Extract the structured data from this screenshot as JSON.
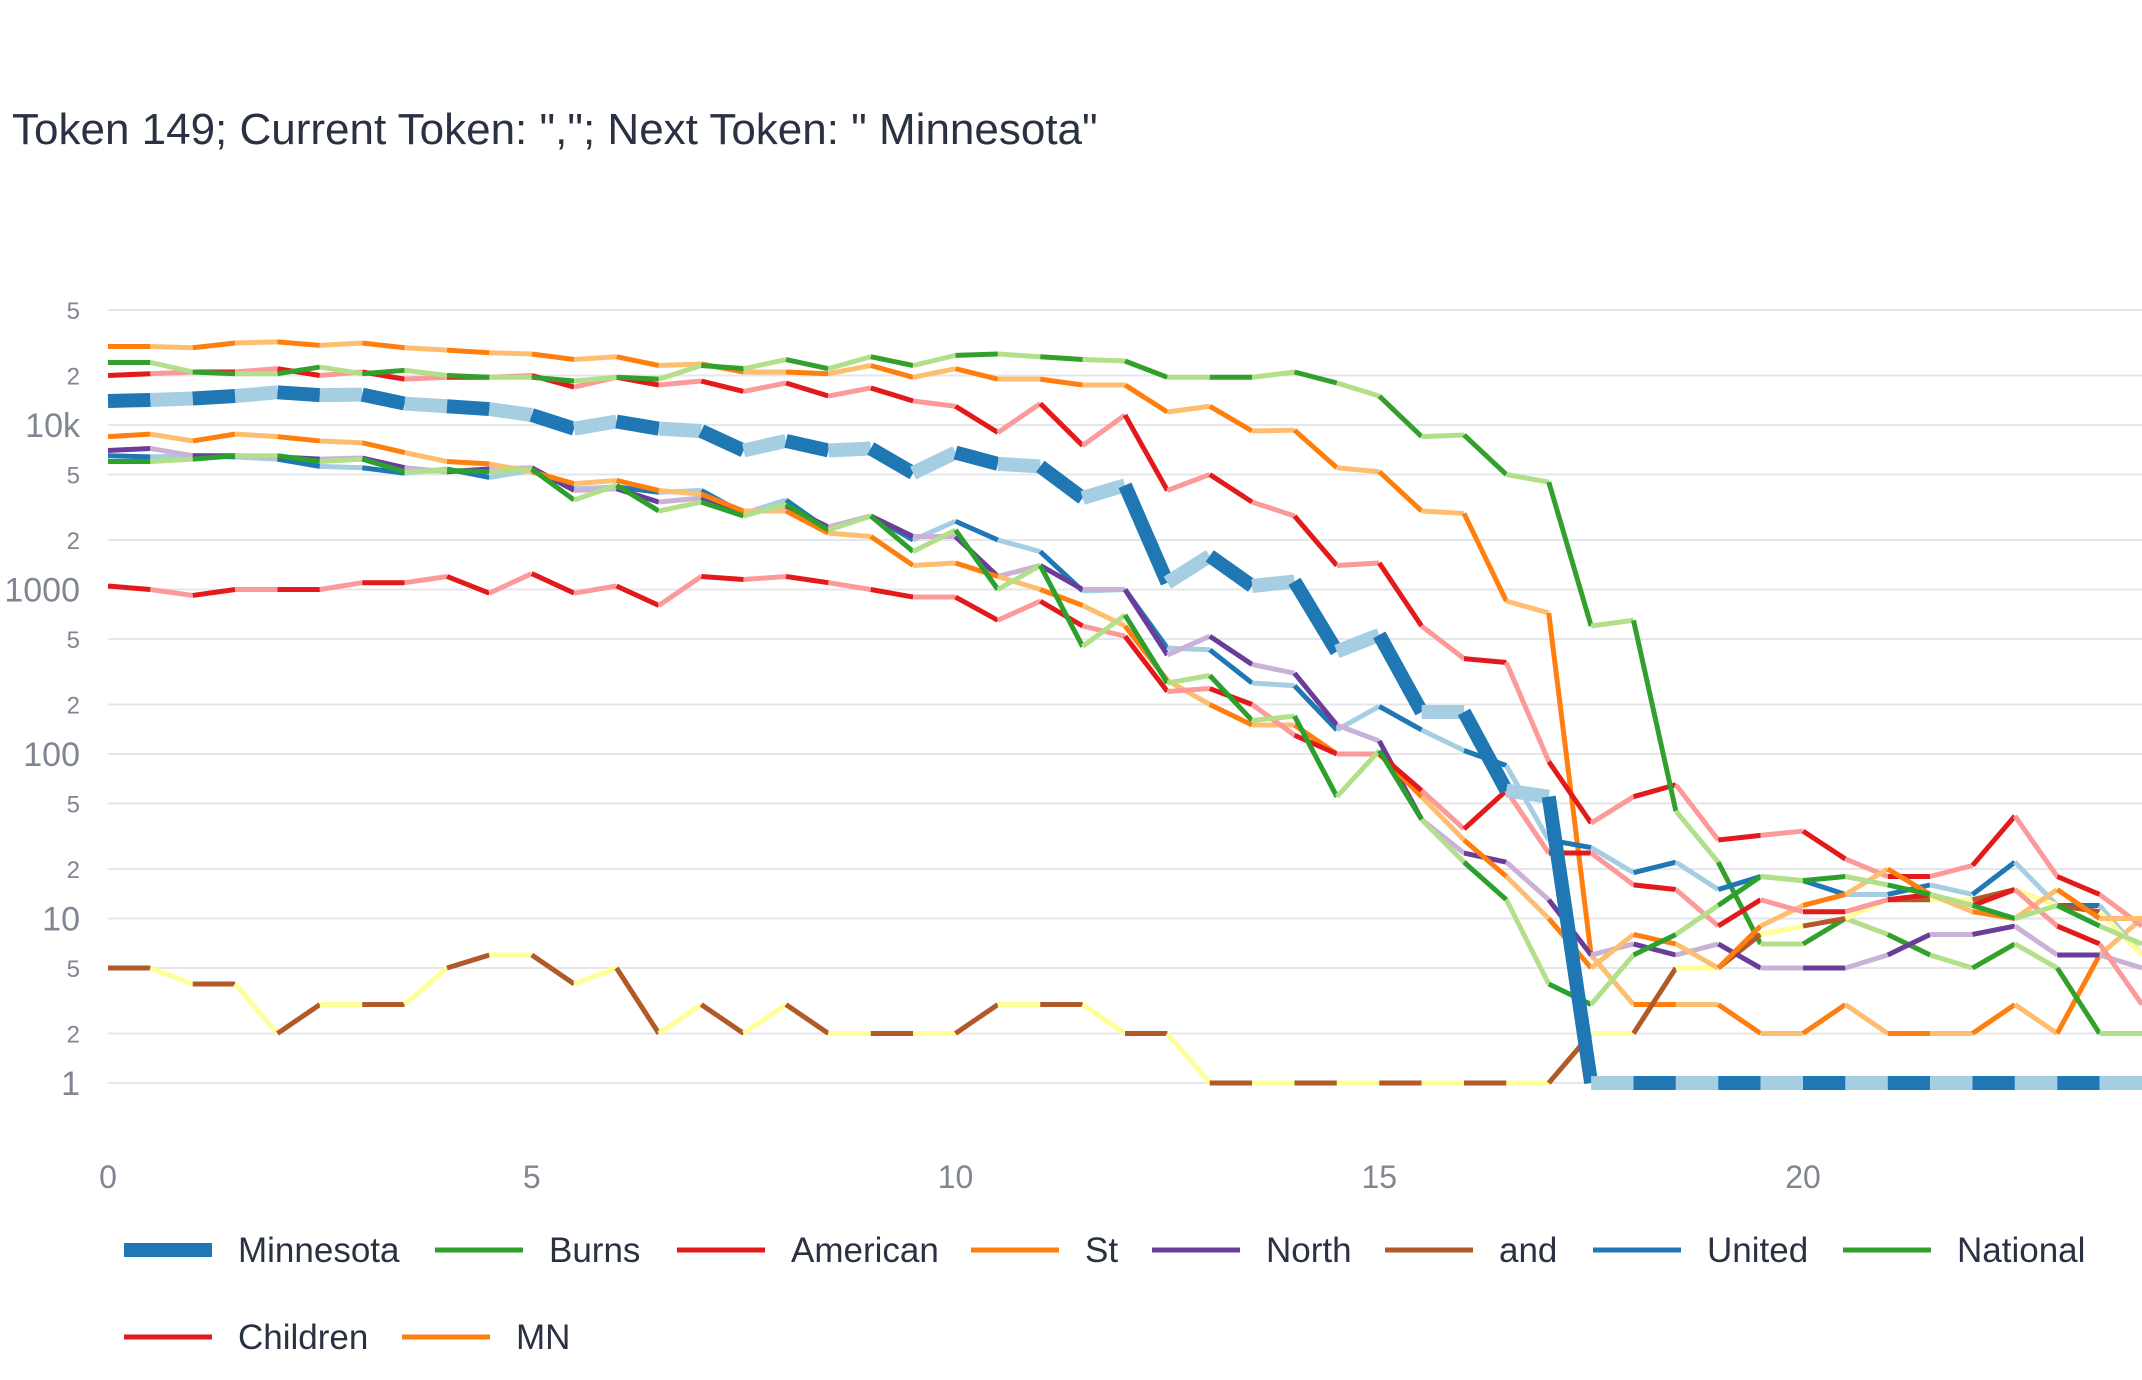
{
  "chart_data": {
    "type": "line",
    "title": "Token 149; Current Token: \",\"; Next Token: \" Minnesota\"",
    "xlabel": "",
    "ylabel": "",
    "y_scale": "log",
    "ylim": [
      0.55,
      6500000
    ],
    "xlim": [
      0,
      24
    ],
    "grid": true,
    "legend_position": "bottom",
    "x_ticks": [
      "0",
      "5",
      "10",
      "15",
      "20"
    ],
    "y_major_ticks": [
      "1",
      "10",
      "100",
      "1000",
      "10k"
    ],
    "y_minor_ticks": [
      "2",
      "5"
    ],
    "x": [
      0,
      0.5,
      1,
      1.5,
      2,
      2.5,
      3,
      3.5,
      4,
      4.5,
      5,
      5.5,
      6,
      6.5,
      7,
      7.5,
      8,
      8.5,
      9,
      9.5,
      10,
      10.5,
      11,
      11.5,
      12,
      12.5,
      13,
      13.5,
      14,
      14.5,
      15,
      15.5,
      16,
      16.5,
      17,
      17.5,
      18,
      18.5,
      19,
      19.5,
      20,
      20.5,
      21,
      21.5,
      22,
      22.5,
      23,
      23.5,
      24
    ],
    "series": [
      {
        "name": "Minnesota",
        "color": "#1f77b4",
        "light": "#a6cee3",
        "width": 14,
        "values": [
          14000,
          14200,
          14500,
          15000,
          15800,
          15200,
          15300,
          13500,
          13000,
          12500,
          11500,
          9500,
          10500,
          9500,
          9200,
          7000,
          8000,
          7000,
          7200,
          5100,
          6800,
          5800,
          5600,
          3600,
          4300,
          1100,
          1600,
          1050,
          1120,
          420,
          530,
          180,
          180,
          60,
          55,
          1,
          1,
          1,
          1,
          1,
          1,
          1,
          1,
          1,
          1,
          1,
          1,
          1,
          1
        ]
      },
      {
        "name": "Burns",
        "color": "#2ca02c",
        "light": "#b2df8a",
        "width": 5,
        "values": [
          6000,
          6000,
          6200,
          6500,
          6500,
          6000,
          6200,
          5200,
          5300,
          5200,
          5400,
          3500,
          4300,
          3000,
          3400,
          2800,
          3300,
          2300,
          2800,
          1700,
          2300,
          1000,
          1400,
          450,
          700,
          270,
          300,
          160,
          170,
          55,
          105,
          40,
          22,
          13,
          4,
          3,
          6,
          8,
          12,
          18,
          17,
          18,
          16,
          14,
          12,
          10,
          12,
          9,
          7
        ]
      },
      {
        "name": "American",
        "color": "#e31a1c",
        "light": "#fb9a99",
        "width": 5,
        "values": [
          1050,
          1000,
          920,
          1000,
          1000,
          1000,
          1100,
          1100,
          1200,
          950,
          1250,
          950,
          1050,
          800,
          1200,
          1150,
          1200,
          1100,
          1000,
          900,
          900,
          650,
          850,
          600,
          520,
          240,
          250,
          200,
          130,
          100,
          100,
          60,
          35,
          60,
          25,
          25,
          16,
          15,
          9,
          13,
          11,
          11,
          13,
          14,
          12,
          15,
          9,
          7,
          3
        ]
      },
      {
        "name": "St",
        "color": "#ff7f0e",
        "light": "#fdbf6f",
        "width": 5,
        "values": [
          8500,
          8800,
          8000,
          8800,
          8500,
          8000,
          7800,
          6800,
          6000,
          5800,
          5200,
          4400,
          4600,
          4000,
          3800,
          3000,
          3000,
          2200,
          2100,
          1400,
          1450,
          1200,
          1000,
          800,
          600,
          280,
          200,
          150,
          150,
          100,
          100,
          55,
          30,
          18,
          10,
          5,
          8,
          7,
          5,
          9,
          12,
          14,
          20,
          14,
          11,
          10,
          15,
          10,
          10
        ]
      },
      {
        "name": "North",
        "color": "#6a3d9a",
        "light": "#cab2d6",
        "width": 5,
        "values": [
          7000,
          7200,
          6500,
          6500,
          6400,
          6200,
          6300,
          5500,
          5200,
          5400,
          5500,
          4000,
          4100,
          3400,
          3600,
          2900,
          3200,
          2400,
          2800,
          2100,
          2100,
          1200,
          1400,
          1000,
          1000,
          400,
          520,
          350,
          310,
          150,
          120,
          40,
          25,
          22,
          13,
          6,
          7,
          6,
          7,
          5,
          5,
          5,
          6,
          8,
          8,
          9,
          6,
          6,
          5
        ]
      },
      {
        "name": "and",
        "color": "#b15928",
        "light": "#ffff99",
        "width": 5,
        "values": [
          5,
          5,
          4,
          4,
          2,
          3,
          3,
          3,
          5,
          6,
          6,
          4,
          5,
          2,
          3,
          2,
          3,
          2,
          2,
          2,
          2,
          3,
          3,
          3,
          2,
          2,
          1,
          1,
          1,
          1,
          1,
          1,
          1,
          1,
          1,
          2,
          2,
          5,
          5,
          8,
          9,
          10,
          13,
          13,
          13,
          15,
          12,
          11,
          6
        ]
      },
      {
        "name": "United",
        "color": "#1f78b4",
        "light": "#a6cee3",
        "width": 5,
        "values": [
          6500,
          6400,
          6500,
          6400,
          6200,
          5600,
          5500,
          5100,
          5400,
          4800,
          5300,
          4100,
          4200,
          3900,
          4000,
          2900,
          3500,
          2300,
          2800,
          2000,
          2600,
          2000,
          1700,
          980,
          1000,
          440,
          430,
          270,
          260,
          140,
          195,
          140,
          105,
          85,
          30,
          27,
          19,
          22,
          15,
          18,
          17,
          14,
          14,
          16,
          14,
          22,
          12,
          12,
          6
        ]
      },
      {
        "name": "National",
        "color": "#33a02c",
        "light": "#b2df8a",
        "width": 5,
        "values": [
          24000,
          24000,
          21000,
          20500,
          20500,
          22500,
          20500,
          21500,
          20000,
          19500,
          19500,
          18500,
          19500,
          19000,
          23000,
          22000,
          25000,
          22000,
          26000,
          23000,
          26500,
          27000,
          26000,
          25000,
          24500,
          19500,
          19500,
          19500,
          21000,
          18000,
          15000,
          8500,
          8700,
          5000,
          4500,
          600,
          650,
          45,
          22,
          7,
          7,
          10,
          8,
          6,
          5,
          7,
          5,
          2,
          2
        ]
      },
      {
        "name": "Children",
        "color": "#e31a1c",
        "light": "#fb9a99",
        "width": 5,
        "values": [
          20000,
          20500,
          21000,
          21000,
          22000,
          20000,
          21000,
          19000,
          19500,
          19500,
          20000,
          17000,
          19500,
          17500,
          18500,
          16000,
          18000,
          15000,
          16800,
          14000,
          13000,
          9000,
          13500,
          7500,
          11500,
          4000,
          5000,
          3400,
          2800,
          1400,
          1450,
          600,
          380,
          360,
          90,
          38,
          55,
          65,
          30,
          32,
          34,
          23,
          18,
          18,
          21,
          42,
          18,
          14,
          9
        ]
      },
      {
        "name": "MN",
        "color": "#ff7f0e",
        "light": "#fdbf6f",
        "width": 5,
        "values": [
          30000,
          30000,
          29500,
          31500,
          32000,
          30500,
          31500,
          29500,
          28500,
          27500,
          27000,
          25000,
          26000,
          23000,
          23500,
          21000,
          21000,
          20500,
          23000,
          19500,
          22000,
          19000,
          19000,
          17500,
          17500,
          12000,
          13000,
          9200,
          9300,
          5500,
          5200,
          3000,
          2900,
          850,
          720,
          6,
          3,
          3,
          3,
          2,
          2,
          3,
          2,
          2,
          2,
          3,
          2,
          6,
          10
        ]
      }
    ]
  }
}
